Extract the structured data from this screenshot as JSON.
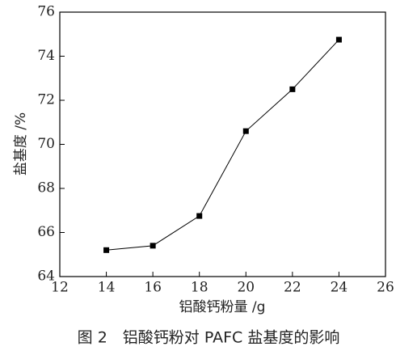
{
  "chart_data": {
    "type": "line",
    "caption": "图 2　铝酸钙粉对 PAFC 盐基度的影响",
    "xlabel": "铝酸钙粉量 /g",
    "ylabel": "盐基度 /%",
    "x": [
      14,
      16,
      18,
      20,
      22,
      24
    ],
    "series": [
      {
        "color": "#000000",
        "values": [
          65.2,
          65.4,
          66.75,
          70.6,
          72.5,
          74.75
        ]
      }
    ],
    "xlim": [
      12,
      26
    ],
    "xticks": [
      12,
      14,
      16,
      18,
      20,
      22,
      24,
      26
    ],
    "ylim": [
      64,
      76
    ],
    "yticks": [
      64,
      66,
      68,
      70,
      72,
      74,
      76
    ],
    "marker": "square"
  }
}
